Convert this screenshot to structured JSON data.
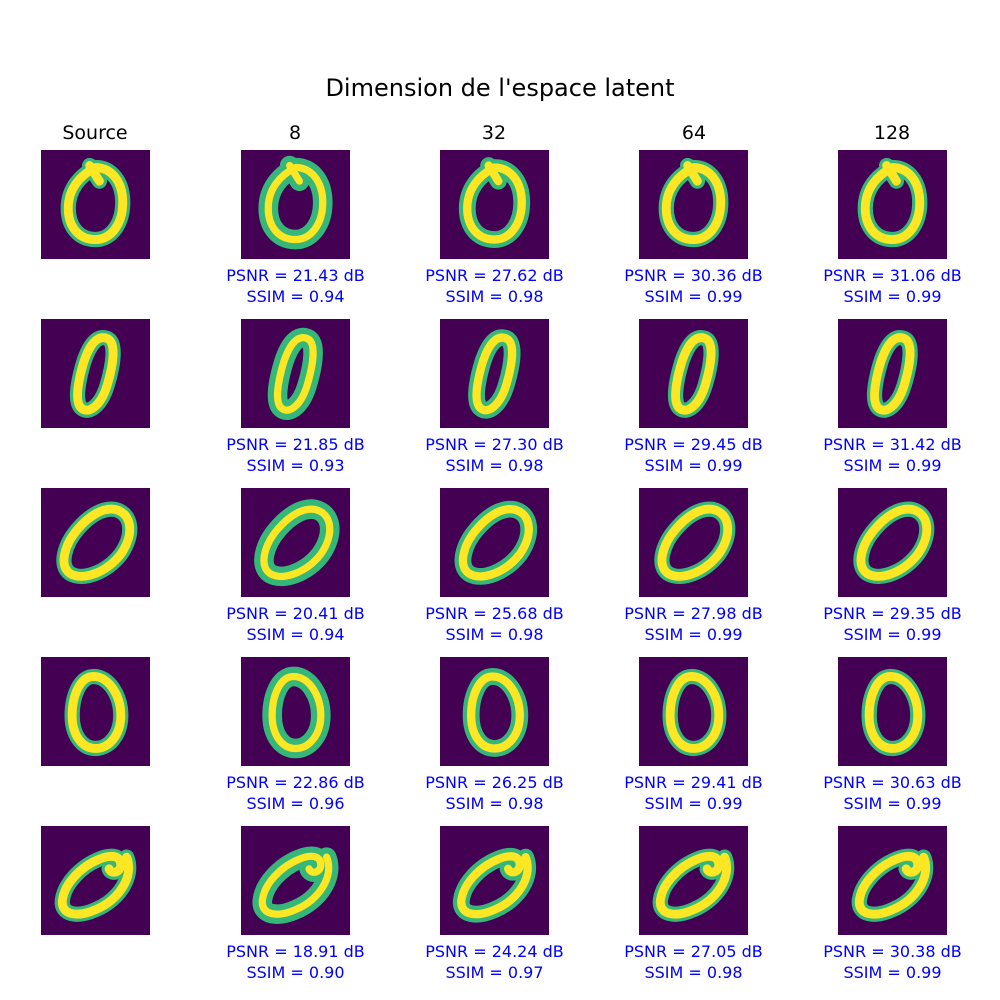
{
  "title": "Dimension de l'espace latent",
  "columns": [
    "Source",
    "8",
    "32",
    "64",
    "128"
  ],
  "colors": {
    "background": "#440154",
    "stroke": "#fde725",
    "edge": "#35b779",
    "metric_text": "#0000ff"
  },
  "rows": [
    {
      "psnr": [
        "PSNR = 21.43 dB",
        "PSNR = 27.62 dB",
        "PSNR = 30.36 dB",
        "PSNR = 31.06 dB"
      ],
      "ssim": [
        "SSIM = 0.94",
        "SSIM = 0.98",
        "SSIM = 0.99",
        "SSIM = 0.99"
      ]
    },
    {
      "psnr": [
        "PSNR = 21.85 dB",
        "PSNR = 27.30 dB",
        "PSNR = 29.45 dB",
        "PSNR = 31.42 dB"
      ],
      "ssim": [
        "SSIM = 0.93",
        "SSIM = 0.98",
        "SSIM = 0.99",
        "SSIM = 0.99"
      ]
    },
    {
      "psnr": [
        "PSNR = 20.41 dB",
        "PSNR = 25.68 dB",
        "PSNR = 27.98 dB",
        "PSNR = 29.35 dB"
      ],
      "ssim": [
        "SSIM = 0.94",
        "SSIM = 0.98",
        "SSIM = 0.99",
        "SSIM = 0.99"
      ]
    },
    {
      "psnr": [
        "PSNR = 22.86 dB",
        "PSNR = 26.25 dB",
        "PSNR = 29.41 dB",
        "PSNR = 30.63 dB"
      ],
      "ssim": [
        "SSIM = 0.96",
        "SSIM = 0.98",
        "SSIM = 0.99",
        "SSIM = 0.99"
      ]
    },
    {
      "psnr": [
        "PSNR = 18.91 dB",
        "PSNR = 24.24 dB",
        "PSNR = 27.05 dB",
        "PSNR = 30.38 dB"
      ],
      "ssim": [
        "SSIM = 0.90",
        "SSIM = 0.97",
        "SSIM = 0.98",
        "SSIM = 0.99"
      ]
    }
  ]
}
